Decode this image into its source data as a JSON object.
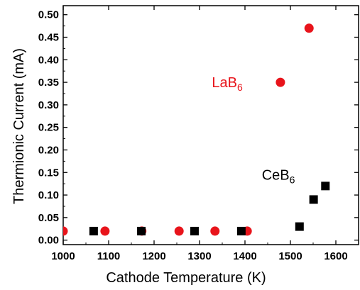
{
  "chart_data": {
    "type": "scatter",
    "title": "",
    "xlabel": "Cathode Temperature (K)",
    "ylabel": "Thermionic Current (mA)",
    "xlim": [
      1000,
      1650
    ],
    "ylim": [
      -0.01,
      0.52
    ],
    "x_ticks": [
      1000,
      1100,
      1200,
      1300,
      1400,
      1500,
      1600
    ],
    "y_ticks": [
      "0.00",
      "0.05",
      "0.10",
      "0.15",
      "0.20",
      "0.25",
      "0.30",
      "0.35",
      "0.40",
      "0.45",
      "0.50"
    ],
    "grid": false,
    "legend": "none",
    "series": [
      {
        "name": "LaB6",
        "marker": "circle",
        "color": "#e8141b",
        "points": [
          {
            "x": 1000,
            "y": 0.02
          },
          {
            "x": 1092,
            "y": 0.02
          },
          {
            "x": 1173,
            "y": 0.02
          },
          {
            "x": 1255,
            "y": 0.02
          },
          {
            "x": 1334,
            "y": 0.02
          },
          {
            "x": 1405,
            "y": 0.02
          },
          {
            "x": 1478,
            "y": 0.35
          },
          {
            "x": 1541,
            "y": 0.47
          }
        ]
      },
      {
        "name": "CeB6",
        "marker": "square",
        "color": "#000000",
        "points": [
          {
            "x": 1067,
            "y": 0.02
          },
          {
            "x": 1172,
            "y": 0.02
          },
          {
            "x": 1289,
            "y": 0.02
          },
          {
            "x": 1392,
            "y": 0.02
          },
          {
            "x": 1520,
            "y": 0.03
          },
          {
            "x": 1551,
            "y": 0.09
          },
          {
            "x": 1577,
            "y": 0.12
          }
        ]
      }
    ],
    "annotations": [
      {
        "series": 0,
        "base": "LaB",
        "sub": "6",
        "color": "#e8141b",
        "x": 1395,
        "y": 0.35
      },
      {
        "series": 1,
        "base": "CeB",
        "sub": "6",
        "color": "#000000",
        "x": 1510,
        "y": 0.145
      }
    ]
  }
}
